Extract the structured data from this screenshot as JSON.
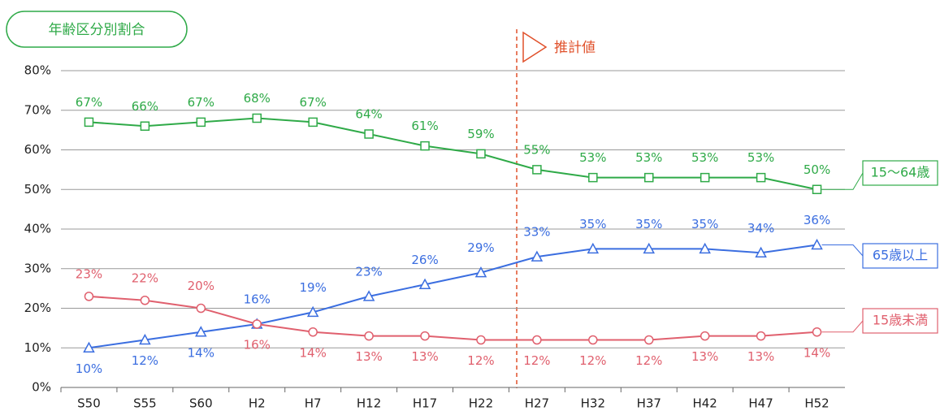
{
  "chart_data": {
    "type": "line",
    "title": "年齢区分別割合",
    "annotation": "推計値",
    "categories": [
      "S50",
      "S55",
      "S60",
      "H2",
      "H7",
      "H12",
      "H17",
      "H22",
      "H27",
      "H32",
      "H37",
      "H42",
      "H47",
      "H52"
    ],
    "ylim": [
      0,
      80
    ],
    "yticks": [
      {
        "value": 0,
        "label": "0%"
      },
      {
        "value": 10,
        "label": "10%"
      },
      {
        "value": 20,
        "label": "20%"
      },
      {
        "value": 30,
        "label": "30%"
      },
      {
        "value": 40,
        "label": "40%"
      },
      {
        "value": 50,
        "label": "50%"
      },
      {
        "value": 60,
        "label": "60%"
      },
      {
        "value": 70,
        "label": "70%"
      },
      {
        "value": 80,
        "label": "80%"
      }
    ],
    "grid": true,
    "series": [
      {
        "name": "15〜64歳",
        "color": "#2faa48",
        "marker": "square",
        "values": [
          67,
          66,
          67,
          68,
          67,
          64,
          61,
          59,
          55,
          53,
          53,
          53,
          53,
          50
        ],
        "value_labels": [
          "67%",
          "66%",
          "67%",
          "68%",
          "67%",
          "64%",
          "61%",
          "59%",
          "55%",
          "53%",
          "53%",
          "53%",
          "53%",
          "50%"
        ]
      },
      {
        "name": "65歳以上",
        "color": "#3b6ee0",
        "marker": "triangle",
        "values": [
          10,
          12,
          14,
          16,
          19,
          23,
          26,
          29,
          33,
          35,
          35,
          35,
          34,
          36
        ],
        "value_labels": [
          "10%",
          "12%",
          "14%",
          "16%",
          "19%",
          "23%",
          "26%",
          "29%",
          "33%",
          "35%",
          "35%",
          "35%",
          "34%",
          "36%"
        ]
      },
      {
        "name": "15歳未満",
        "color": "#e0606e",
        "marker": "circle",
        "values": [
          23,
          22,
          20,
          16,
          14,
          13,
          13,
          12,
          12,
          12,
          12,
          13,
          13,
          14
        ],
        "value_labels": [
          "23%",
          "22%",
          "20%",
          "16%",
          "14%",
          "13%",
          "13%",
          "12%",
          "12%",
          "12%",
          "12%",
          "13%",
          "13%",
          "14%"
        ]
      }
    ]
  }
}
